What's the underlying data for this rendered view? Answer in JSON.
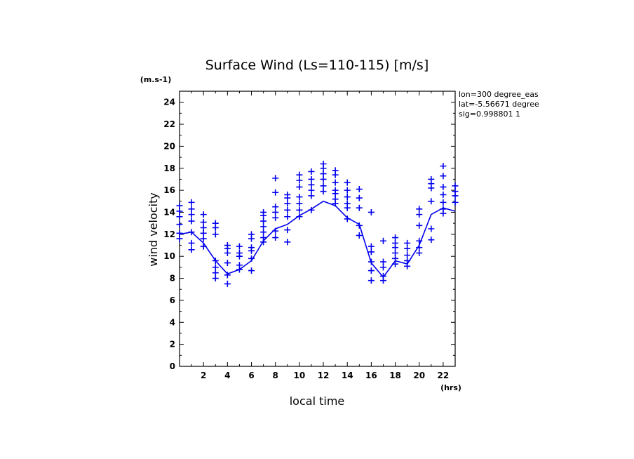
{
  "chart_data": {
    "type": "line",
    "title": "Surface Wind  (Ls=110-115) [m/s]",
    "ylabel": "wind velocity",
    "yunits": "(m.s-1)",
    "xlabel": "local time",
    "xunits": "(hrs)",
    "xlim": [
      0,
      23
    ],
    "ylim": [
      0,
      25
    ],
    "xticks": [
      2,
      4,
      6,
      8,
      10,
      12,
      14,
      16,
      18,
      20,
      22
    ],
    "yticks": [
      0,
      2,
      4,
      6,
      8,
      10,
      12,
      14,
      16,
      18,
      20,
      22,
      24
    ],
    "info": [
      "lon=300 degree_eas",
      "lat=-5.56671 degree",
      "sig=0.998801 1"
    ],
    "color": "#0000ee",
    "series": [
      {
        "name": "mean",
        "x": [
          0,
          1,
          2,
          3,
          4,
          5,
          6,
          7,
          8,
          9,
          10,
          11,
          12,
          13,
          14,
          15,
          16,
          17,
          18,
          19,
          20,
          21,
          22,
          23
        ],
        "values": [
          12.0,
          12.2,
          11.2,
          9.6,
          8.4,
          8.8,
          9.6,
          11.4,
          12.5,
          12.9,
          13.7,
          14.3,
          15.0,
          14.6,
          13.5,
          12.9,
          9.4,
          8.1,
          9.6,
          9.3,
          11.0,
          13.8,
          14.4,
          14.1
        ]
      },
      {
        "name": "samples",
        "points": [
          [
            0,
            [
              11.6,
              12.1,
              12.9,
              13.6,
              14.1,
              14.6
            ]
          ],
          [
            1,
            [
              10.6,
              11.2,
              12.2,
              13.2,
              13.8,
              14.3,
              14.9
            ]
          ],
          [
            2,
            [
              10.9,
              11.6,
              12.1,
              12.6,
              13.1,
              13.8
            ]
          ],
          [
            3,
            [
              8.0,
              8.5,
              9.0,
              9.6,
              12.0,
              12.6,
              13.0
            ]
          ],
          [
            4,
            [
              7.5,
              8.3,
              9.4,
              10.3,
              10.7,
              11.0
            ]
          ],
          [
            5,
            [
              8.8,
              9.2,
              10.0,
              10.3,
              10.9
            ]
          ],
          [
            6,
            [
              8.7,
              9.8,
              10.5,
              10.8,
              11.6,
              12.0
            ]
          ],
          [
            7,
            [
              11.3,
              11.7,
              12.2,
              12.7,
              13.2,
              13.7,
              14.0
            ]
          ],
          [
            8,
            [
              11.7,
              12.3,
              13.5,
              14.0,
              14.5,
              15.8,
              17.1
            ]
          ],
          [
            9,
            [
              11.3,
              12.4,
              13.6,
              14.2,
              14.8,
              15.3,
              15.6
            ]
          ],
          [
            10,
            [
              13.6,
              14.2,
              14.8,
              15.4,
              16.3,
              16.9,
              17.4
            ]
          ],
          [
            11,
            [
              14.2,
              15.5,
              16.0,
              16.5,
              17.0,
              17.7
            ]
          ],
          [
            12,
            [
              15.9,
              16.4,
              17.0,
              17.5,
              18.0,
              18.4
            ]
          ],
          [
            13,
            [
              14.8,
              15.2,
              15.7,
              16.0,
              16.7,
              17.4,
              17.8
            ]
          ],
          [
            14,
            [
              13.4,
              14.4,
              14.8,
              15.4,
              16.0,
              16.7
            ]
          ],
          [
            15,
            [
              11.9,
              12.8,
              14.4,
              15.3,
              16.1
            ]
          ],
          [
            16,
            [
              7.8,
              8.7,
              9.5,
              10.4,
              10.9,
              14.0
            ]
          ],
          [
            17,
            [
              7.8,
              8.2,
              9.0,
              9.5,
              11.4
            ]
          ],
          [
            18,
            [
              9.3,
              9.8,
              10.3,
              10.8,
              11.2,
              11.7
            ]
          ],
          [
            19,
            [
              9.1,
              9.6,
              10.1,
              10.7,
              11.2
            ]
          ],
          [
            20,
            [
              10.3,
              10.8,
              11.4,
              12.8,
              13.8,
              14.3
            ]
          ],
          [
            21,
            [
              11.5,
              12.5,
              15.0,
              16.2,
              16.6,
              17.0
            ]
          ],
          [
            22,
            [
              13.9,
              14.3,
              14.9,
              15.6,
              16.3,
              17.3,
              18.2
            ]
          ],
          [
            23,
            [
              14.9,
              15.5,
              15.9,
              16.4
            ]
          ]
        ]
      }
    ]
  }
}
